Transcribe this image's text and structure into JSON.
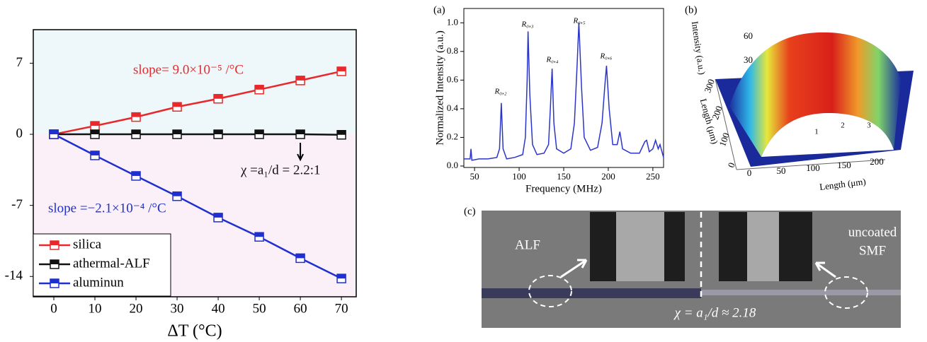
{
  "chart_data": [
    {
      "type": "line",
      "x_label": "ΔT (°C)",
      "x": [
        0,
        10,
        20,
        30,
        40,
        50,
        60,
        70
      ],
      "xlim": [
        -5,
        73.6
      ],
      "xticks": [
        0,
        10,
        20,
        30,
        40,
        50,
        60,
        70
      ],
      "ylim": [
        -16,
        10.3
      ],
      "yticks": [
        7,
        0,
        -7,
        -14
      ],
      "region_colors": {
        "above_zero": "#eef7f9",
        "below_zero": "#fbf0f8"
      },
      "legend": "lower left",
      "series": [
        {
          "name": "silica",
          "color": "#e8282a",
          "values": [
            0,
            0.83,
            1.7,
            2.7,
            3.5,
            4.4,
            5.3,
            6.2
          ]
        },
        {
          "name": "athermal-ALF",
          "color": "#111111",
          "values": [
            0,
            0,
            0,
            0,
            0,
            0,
            0,
            -0.05
          ]
        },
        {
          "name": "aluminun",
          "color": "#1f2fd0",
          "values": [
            0,
            -2.08,
            -4.1,
            -6.1,
            -8.2,
            -10.1,
            -12.2,
            -14.2
          ]
        }
      ],
      "annotations": [
        {
          "text": "slope= 9.0×10⁻⁵ /°C",
          "color": "#e8282a"
        },
        {
          "text": "χ =a₁/d = 2.2:1",
          "color": "#111111"
        },
        {
          "text": "slope =−2.1×10⁻⁴ /°C",
          "color": "#1f2fd0"
        }
      ]
    },
    {
      "type": "line",
      "panel_label": "(a)",
      "x_label": "Frequency (MHz)",
      "y_label": "Normalized Intensity (a.u.)",
      "x": [
        38,
        45,
        46,
        47,
        55,
        65,
        75,
        78,
        80,
        82,
        86,
        95,
        104,
        107,
        109,
        110,
        112,
        115,
        120,
        128,
        133,
        135,
        137,
        139,
        142,
        150,
        158,
        162,
        165,
        167,
        170,
        173,
        180,
        188,
        193,
        196,
        198,
        201,
        205,
        210,
        213,
        216,
        225,
        235,
        241,
        243,
        246,
        250,
        253,
        256,
        258,
        262
      ],
      "series": [
        {
          "name": null,
          "color": "#2b35c8",
          "values": [
            0.05,
            0.05,
            0.12,
            0.04,
            0.05,
            0.05,
            0.06,
            0.12,
            0.44,
            0.12,
            0.05,
            0.06,
            0.08,
            0.2,
            0.6,
            0.94,
            0.5,
            0.15,
            0.08,
            0.09,
            0.15,
            0.4,
            0.68,
            0.3,
            0.12,
            0.09,
            0.12,
            0.3,
            0.7,
            1.0,
            0.55,
            0.2,
            0.11,
            0.13,
            0.3,
            0.55,
            0.7,
            0.4,
            0.15,
            0.15,
            0.24,
            0.12,
            0.09,
            0.09,
            0.17,
            0.18,
            0.1,
            0.12,
            0.18,
            0.12,
            0.15,
            0.06
          ]
        }
      ],
      "xlim": [
        38,
        262
      ],
      "xticks": [
        50,
        100,
        150,
        200,
        250
      ],
      "ylim": [
        -0.01,
        1.1
      ],
      "yticks": [
        {
          "value": 0,
          "label": "0.0"
        },
        0.2,
        0.4,
        0.6,
        0.8,
        {
          "value": 1,
          "label": "1.0"
        }
      ],
      "annotations": [
        "R₀,₂",
        "R₀,₃",
        "R₀,₄",
        "R₀,₅",
        "R₀,₆"
      ]
    }
  ],
  "panel_b": {
    "label": "(b)",
    "z_label": "Intensity (a.u.)",
    "z_ticks": [
      "30",
      "60"
    ],
    "y_label": "Length (μm)",
    "y_ticks": [
      "0",
      "100",
      "200",
      "300"
    ],
    "x_label": "Length (μm)",
    "x_ticks": [
      "0",
      "50",
      "100",
      "150",
      "200"
    ],
    "markers": [
      "1",
      "2",
      "3"
    ]
  },
  "panel_c": {
    "label": "(c)",
    "left_text": "ALF",
    "right_text": [
      "uncoated",
      "SMF"
    ],
    "formula": "χ = a₁/d ≈ 2.18"
  }
}
